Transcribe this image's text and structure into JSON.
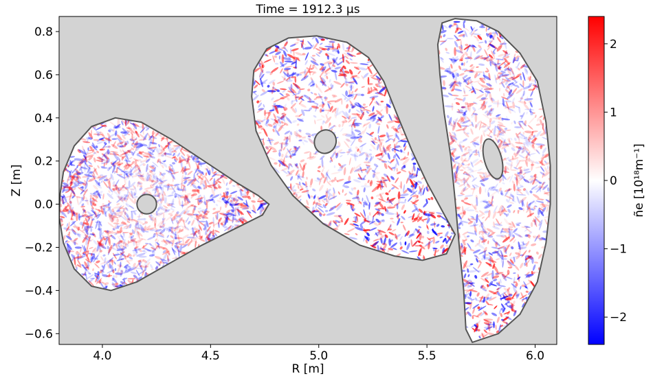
{
  "chart_data": {
    "type": "heatmap",
    "title": "Time = 1912.3 μs",
    "xlabel": "R [m]",
    "ylabel": "Z [m]",
    "xlim": [
      3.8,
      6.1
    ],
    "ylim": [
      -0.65,
      0.87
    ],
    "x_ticks": [
      {
        "value": 4.0,
        "label": "4.0"
      },
      {
        "value": 4.5,
        "label": "4.5"
      },
      {
        "value": 5.0,
        "label": "5.0"
      },
      {
        "value": 5.5,
        "label": "5.5"
      },
      {
        "value": 6.0,
        "label": "6.0"
      }
    ],
    "y_ticks": [
      {
        "value": 0.8,
        "label": "0.8"
      },
      {
        "value": 0.6,
        "label": "0.6"
      },
      {
        "value": 0.4,
        "label": "0.4"
      },
      {
        "value": 0.2,
        "label": "0.2"
      },
      {
        "value": 0.0,
        "label": "0.0"
      },
      {
        "value": -0.2,
        "label": "−0.2"
      },
      {
        "value": -0.4,
        "label": "−0.4"
      },
      {
        "value": -0.6,
        "label": "−0.6"
      }
    ],
    "colorbar": {
      "label": "ñe [10¹⁸m⁻¹]",
      "colormap": "bwr",
      "range": [
        -2.4,
        2.4
      ],
      "ticks": [
        {
          "value": 2,
          "label": "2"
        },
        {
          "value": 1,
          "label": "1"
        },
        {
          "value": 0,
          "label": "0"
        },
        {
          "value": -1,
          "label": "−1"
        },
        {
          "value": -2,
          "label": "−2"
        }
      ]
    },
    "colors": {
      "background": "#d3d3d3",
      "positive": "#ff0000",
      "negative": "#0000ff",
      "boundary": "#555555"
    },
    "cross_sections": [
      {
        "boundary": [
          [
            3.805,
            0.05
          ],
          [
            3.82,
            0.15
          ],
          [
            3.87,
            0.27
          ],
          [
            3.95,
            0.36
          ],
          [
            4.06,
            0.4
          ],
          [
            4.18,
            0.38
          ],
          [
            4.32,
            0.3
          ],
          [
            4.47,
            0.2
          ],
          [
            4.62,
            0.1
          ],
          [
            4.72,
            0.04
          ],
          [
            4.77,
            0.0
          ],
          [
            4.74,
            -0.05
          ],
          [
            4.62,
            -0.11
          ],
          [
            4.46,
            -0.19
          ],
          [
            4.3,
            -0.28
          ],
          [
            4.16,
            -0.36
          ],
          [
            4.04,
            -0.4
          ],
          [
            3.95,
            -0.38
          ],
          [
            3.87,
            -0.3
          ],
          [
            3.82,
            -0.18
          ],
          [
            3.8,
            -0.06
          ]
        ],
        "hole": {
          "center": [
            4.205,
            0.0
          ],
          "rx": 0.045,
          "ry": 0.045
        }
      },
      {
        "boundary": [
          [
            4.69,
            0.5
          ],
          [
            4.7,
            0.62
          ],
          [
            4.76,
            0.72
          ],
          [
            4.86,
            0.77
          ],
          [
            4.99,
            0.78
          ],
          [
            5.13,
            0.75
          ],
          [
            5.23,
            0.68
          ],
          [
            5.3,
            0.57
          ],
          [
            5.36,
            0.42
          ],
          [
            5.43,
            0.25
          ],
          [
            5.5,
            0.1
          ],
          [
            5.57,
            -0.03
          ],
          [
            5.63,
            -0.14
          ],
          [
            5.59,
            -0.23
          ],
          [
            5.48,
            -0.26
          ],
          [
            5.35,
            -0.24
          ],
          [
            5.19,
            -0.19
          ],
          [
            5.02,
            -0.09
          ],
          [
            4.88,
            0.04
          ],
          [
            4.78,
            0.18
          ],
          [
            4.71,
            0.34
          ]
        ],
        "hole": {
          "center": [
            5.03,
            0.29
          ],
          "rx": 0.05,
          "ry": 0.055,
          "rotation": 20
        }
      },
      {
        "boundary": [
          [
            5.57,
            0.84
          ],
          [
            5.63,
            0.86
          ],
          [
            5.73,
            0.85
          ],
          [
            5.83,
            0.8
          ],
          [
            5.93,
            0.7
          ],
          [
            6.01,
            0.57
          ],
          [
            6.05,
            0.38
          ],
          [
            6.07,
            0.18
          ],
          [
            6.07,
            0.0
          ],
          [
            6.05,
            -0.18
          ],
          [
            6.01,
            -0.36
          ],
          [
            5.93,
            -0.51
          ],
          [
            5.83,
            -0.6
          ],
          [
            5.71,
            -0.64
          ],
          [
            5.68,
            -0.58
          ],
          [
            5.67,
            -0.4
          ],
          [
            5.65,
            -0.2
          ],
          [
            5.63,
            0.02
          ],
          [
            5.61,
            0.22
          ],
          [
            5.58,
            0.42
          ],
          [
            5.56,
            0.6
          ],
          [
            5.55,
            0.74
          ]
        ],
        "hole": {
          "center": [
            5.805,
            0.21
          ],
          "rx": 0.04,
          "ry": 0.095,
          "rotation": -15
        }
      }
    ]
  }
}
